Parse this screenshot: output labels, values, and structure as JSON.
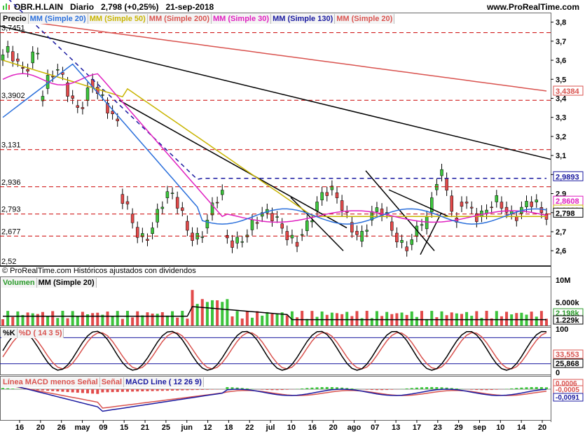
{
  "header": {
    "symbol": "OBR.H.LAIN",
    "period": "Diario",
    "last": "2,798 (+0,25%)",
    "date": "21-sep-2018",
    "site": "www.ProRealTime.com"
  },
  "price_panel": {
    "legend": [
      "Precio",
      "MM (Simple 20)",
      "MM (Simple 50)",
      "MM (Simple 200)",
      "MM (Simple 30)",
      "MM (Simple 130)",
      "MM (Simple 20)"
    ],
    "legend_colors": [
      "#000000",
      "#2a6fdb",
      "#c8b400",
      "#d9534f",
      "#e020c0",
      "#1a1aa0",
      "#d9534f"
    ],
    "left_levels": [
      "3,7451",
      "3,3902",
      "3,131",
      "2,936",
      "2,793",
      "2,677",
      "2,52"
    ],
    "right_ticks": [
      "3,8",
      "3,7",
      "3,6",
      "3,5",
      "3,4",
      "3,3",
      "3,2",
      "3,1",
      "3,0",
      "2,9",
      "2,8",
      "2,7",
      "2,6"
    ],
    "right_badges": [
      "3,4384",
      "2,9893",
      "2,8608",
      "2,8139",
      "2,798"
    ],
    "footer": "© ProRealTime.com  Históricos ajustados con dividendos"
  },
  "volume_panel": {
    "legend": [
      "Volumen",
      "MM (Simple 20)"
    ],
    "right_ticks": [
      "10M",
      "5.000k"
    ],
    "right_badges": [
      "2.198k",
      "1.229k"
    ]
  },
  "stoch_panel": {
    "legend": [
      "%K",
      "%D ( 14 3 5)"
    ],
    "right_ticks": [
      "100",
      "0"
    ],
    "right_badges": [
      "33,553",
      "25,868"
    ]
  },
  "macd_panel": {
    "legend": [
      "Línea MACD menos Señal",
      "Señal",
      "MACD Line ( 12 26 9)"
    ],
    "right_badges": [
      "0,0006",
      "-0,0005",
      "-0,0091"
    ]
  },
  "x_axis": {
    "labels": [
      "16",
      "20",
      "26",
      "may",
      "09",
      "15",
      "21",
      "25",
      "jun",
      "12",
      "18",
      "22",
      "jul",
      "10",
      "16",
      "20",
      "ago",
      "07",
      "13",
      "17",
      "23",
      "29",
      "sep",
      "10",
      "14",
      "20"
    ]
  },
  "colors": {
    "up": "#3cc43c",
    "down": "#e24a4a",
    "ma20": "#2a6fdb",
    "ma50": "#c8b400",
    "ma200": "#d9534f",
    "ma30": "#e020c0",
    "ma130": "#1a1aa0"
  }
}
